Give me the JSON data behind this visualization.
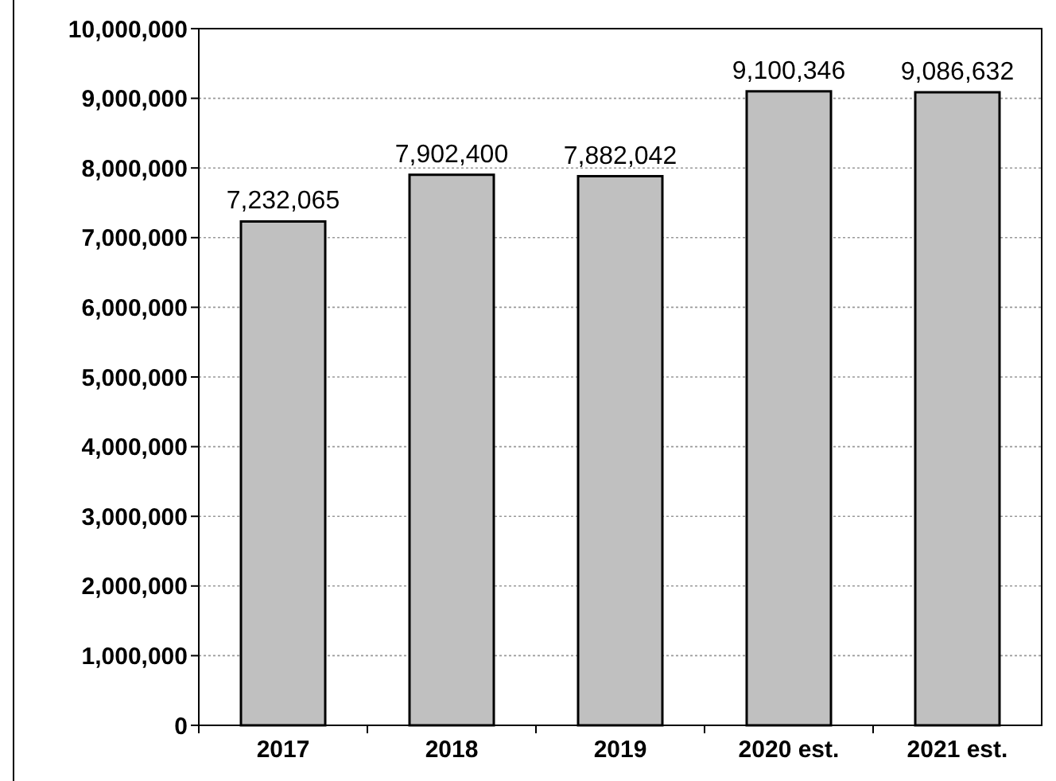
{
  "chart_data": {
    "type": "bar",
    "categories": [
      "2017",
      "2018",
      "2019",
      "2020 est.",
      "2021 est."
    ],
    "values": [
      7232065,
      7902400,
      7882042,
      9100346,
      9086632
    ],
    "value_labels": [
      "7,232,065",
      "7,902,400",
      "7,882,042",
      "9,100,346",
      "9,086,632"
    ],
    "color": "#c0c0c0",
    "grid": "y",
    "ylim": [
      0,
      10000000
    ],
    "yticks": [
      {
        "value": 0,
        "label": "0"
      },
      {
        "value": 1000000,
        "label": "1,000,000"
      },
      {
        "value": 2000000,
        "label": "2,000,000"
      },
      {
        "value": 3000000,
        "label": "3,000,000"
      },
      {
        "value": 4000000,
        "label": "4,000,000"
      },
      {
        "value": 5000000,
        "label": "5,000,000"
      },
      {
        "value": 6000000,
        "label": "6,000,000"
      },
      {
        "value": 7000000,
        "label": "7,000,000"
      },
      {
        "value": 8000000,
        "label": "8,000,000"
      },
      {
        "value": 9000000,
        "label": "9,000,000"
      },
      {
        "value": 10000000,
        "label": "10,000,000"
      }
    ]
  }
}
